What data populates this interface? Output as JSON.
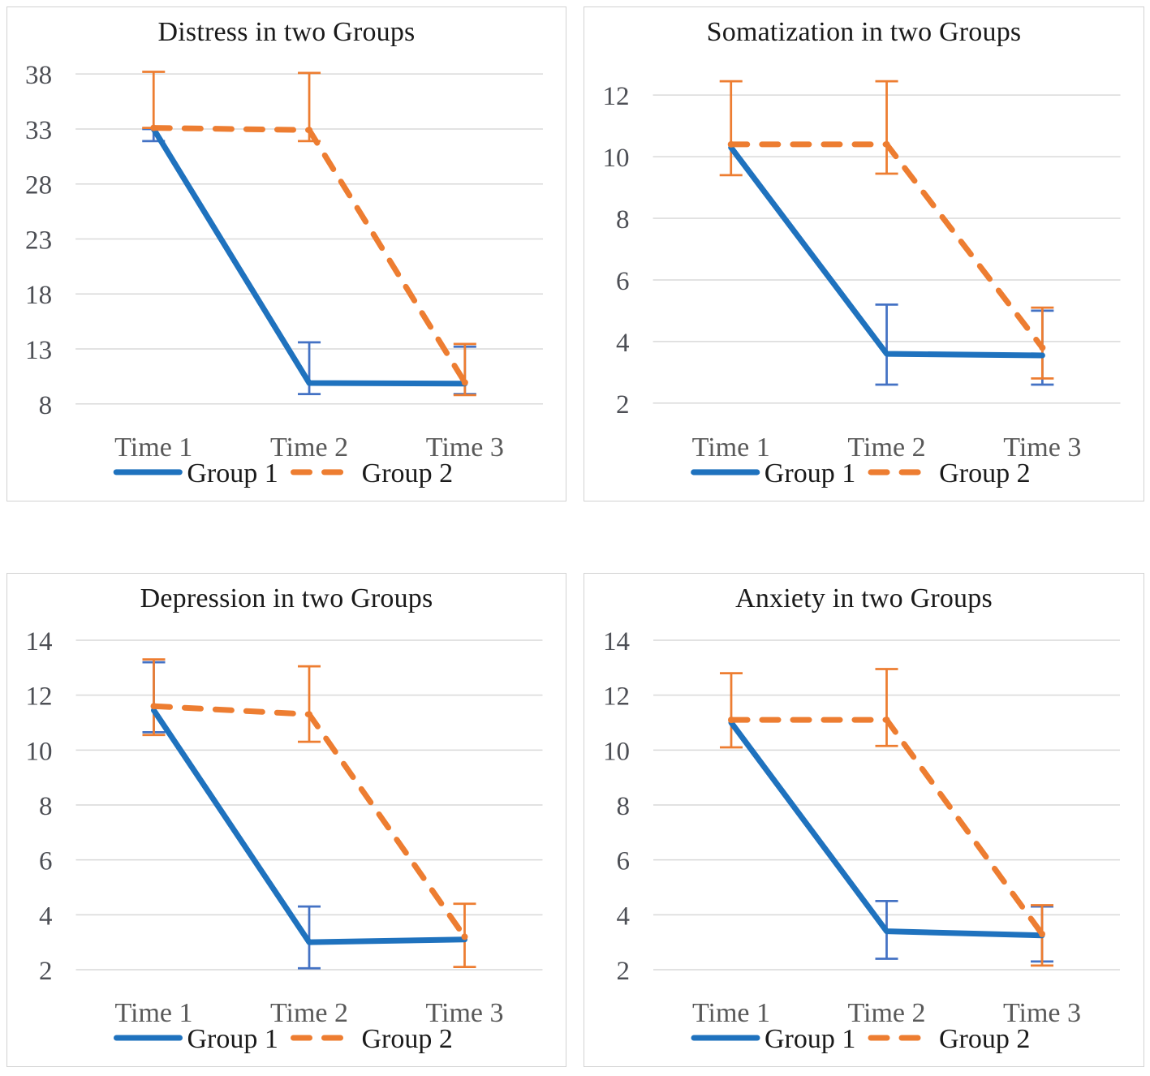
{
  "colors": {
    "group1_line": "#1f72be",
    "group1_error": "#4472c4",
    "group2_line": "#ed7d31",
    "group2_error": "#ed7d31",
    "gridline": "#d9d9d9",
    "panel_border": "#d2d2d2",
    "axis_text": "#595959",
    "title_text": "#1a1a1a"
  },
  "chart_data": [
    {
      "type": "line",
      "title": "Distress in two Groups",
      "categories": [
        "Time 1",
        "Time 2",
        "Time 3"
      ],
      "y_ticks": [
        38,
        33,
        28,
        23,
        18,
        13,
        8
      ],
      "grid": true,
      "legend_position": "bottom",
      "legend": [
        "Group 1",
        "Group 2"
      ],
      "series": [
        {
          "name": "Group 1",
          "line_style": "solid",
          "values": [
            33.0,
            9.9,
            9.85
          ],
          "err_lo": [
            31.9,
            8.9,
            8.9
          ],
          "err_hi": [
            33.0,
            13.6,
            13.2
          ]
        },
        {
          "name": "Group 2",
          "line_style": "dashed",
          "values": [
            33.1,
            32.9,
            9.95
          ],
          "err_lo": [
            33.1,
            31.9,
            8.8
          ],
          "err_hi": [
            38.2,
            38.1,
            13.45
          ]
        }
      ]
    },
    {
      "type": "line",
      "title": "Somatization in two Groups",
      "categories": [
        "Time 1",
        "Time 2",
        "Time 3"
      ],
      "y_ticks": [
        12,
        10,
        8,
        6,
        4,
        2
      ],
      "grid": true,
      "legend_position": "bottom",
      "legend": [
        "Group 1",
        "Group 2"
      ],
      "series": [
        {
          "name": "Group 1",
          "line_style": "solid",
          "values": [
            10.3,
            3.6,
            3.55
          ],
          "err_lo": [
            10.3,
            2.6,
            2.6
          ],
          "err_hi": [
            10.3,
            5.2,
            5.0
          ]
        },
        {
          "name": "Group 2",
          "line_style": "dashed",
          "values": [
            10.4,
            10.4,
            3.8
          ],
          "err_lo": [
            9.4,
            9.45,
            2.8
          ],
          "err_hi": [
            12.45,
            12.45,
            5.1
          ]
        }
      ]
    },
    {
      "type": "line",
      "title": "Depression in two Groups",
      "categories": [
        "Time 1",
        "Time 2",
        "Time 3"
      ],
      "y_ticks": [
        14,
        12,
        10,
        8,
        6,
        4,
        2
      ],
      "grid": true,
      "legend_position": "bottom",
      "legend": [
        "Group 1",
        "Group 2"
      ],
      "series": [
        {
          "name": "Group 1",
          "line_style": "solid",
          "values": [
            11.45,
            3.0,
            3.1
          ],
          "err_lo": [
            10.65,
            2.05,
            3.1
          ],
          "err_hi": [
            13.2,
            4.3,
            3.1
          ]
        },
        {
          "name": "Group 2",
          "line_style": "dashed",
          "values": [
            11.6,
            11.3,
            3.2
          ],
          "err_lo": [
            10.55,
            10.3,
            2.1
          ],
          "err_hi": [
            13.3,
            13.05,
            4.4
          ]
        }
      ]
    },
    {
      "type": "line",
      "title": "Anxiety in two Groups",
      "categories": [
        "Time 1",
        "Time 2",
        "Time 3"
      ],
      "y_ticks": [
        14,
        12,
        10,
        8,
        6,
        4,
        2
      ],
      "grid": true,
      "legend_position": "bottom",
      "legend": [
        "Group 1",
        "Group 2"
      ],
      "series": [
        {
          "name": "Group 1",
          "line_style": "solid",
          "values": [
            11.0,
            3.4,
            3.25
          ],
          "err_lo": [
            11.0,
            2.4,
            2.3
          ],
          "err_hi": [
            11.0,
            4.5,
            4.3
          ]
        },
        {
          "name": "Group 2",
          "line_style": "dashed",
          "values": [
            11.1,
            11.1,
            3.3
          ],
          "err_lo": [
            10.1,
            10.15,
            2.15
          ],
          "err_hi": [
            12.8,
            12.95,
            4.35
          ]
        }
      ]
    }
  ]
}
